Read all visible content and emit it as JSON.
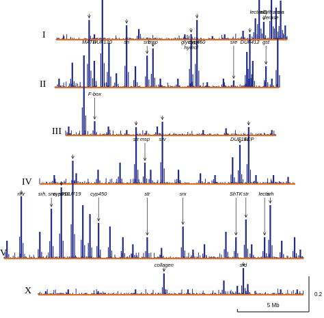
{
  "chart_data": {
    "type": "bar",
    "scale_bar": {
      "length_label": "5 Mb",
      "height_label": "0.2",
      "length_mb": 5,
      "height_value": 0.2
    },
    "colors": {
      "signal": "#1f2a8c",
      "baseline": "#e07020"
    },
    "chromosomes": [
      {
        "name": "I",
        "length_mb": 15.07,
        "peaks": [
          [
            0.5,
            0.02
          ],
          [
            2.5,
            0.03
          ],
          [
            5.4,
            0.06
          ],
          [
            8.4,
            0.03
          ],
          [
            10.2,
            0.02
          ],
          [
            11.0,
            0.03
          ],
          [
            12.2,
            0.05
          ],
          [
            13.0,
            0.12
          ],
          [
            13.25,
            0.25
          ],
          [
            13.55,
            0.1
          ],
          [
            14.05,
            0.3
          ],
          [
            14.35,
            0.18
          ],
          [
            14.65,
            0.22
          ],
          [
            14.95,
            0.08
          ]
        ],
        "annotations": [
          {
            "text": "lectin C",
            "x_mb": 13.2,
            "lines": [
              "lectin C"
            ]
          },
          {
            "text": "nhr",
            "x_mb": 13.55,
            "lines": [
              "nhr"
            ]
          },
          {
            "text": "acyltransferase",
            "x_mb": 14.05,
            "lines": [
              "acyltrans-",
              "ferase"
            ]
          },
          {
            "text": "sra",
            "x_mb": 14.65,
            "lines": [
              "sra"
            ]
          }
        ]
      },
      {
        "name": "II",
        "length_mb": 15.28,
        "peaks": [
          [
            0.3,
            0.05
          ],
          [
            1.2,
            0.14
          ],
          [
            2.35,
            0.38
          ],
          [
            2.7,
            0.15
          ],
          [
            3.25,
            0.55
          ],
          [
            3.7,
            0.25
          ],
          [
            4.2,
            0.08
          ],
          [
            4.9,
            0.35
          ],
          [
            5.5,
            0.12
          ],
          [
            6.3,
            0.18
          ],
          [
            6.7,
            0.22
          ],
          [
            7.2,
            0.05
          ],
          [
            8.4,
            0.05
          ],
          [
            9.3,
            0.3
          ],
          [
            9.7,
            0.38
          ],
          [
            10.4,
            0.03
          ],
          [
            11.5,
            0.05
          ],
          [
            12.2,
            0.04
          ],
          [
            13.1,
            0.2
          ],
          [
            13.3,
            0.3
          ],
          [
            13.5,
            0.15
          ],
          [
            14.4,
            0.12
          ],
          [
            14.8,
            0.05
          ],
          [
            15.2,
            0.28
          ]
        ],
        "annotations": [
          {
            "text": "MATH",
            "x_mb": 2.35,
            "lines": [
              "MATH"
            ]
          },
          {
            "text": "DUF130",
            "x_mb": 3.25,
            "lines": [
              "DUF130"
            ]
          },
          {
            "text": "sri",
            "x_mb": 4.9,
            "lines": [
              "sri"
            ]
          },
          {
            "text": "srb",
            "x_mb": 6.3,
            "lines": [
              "srb"
            ]
          },
          {
            "text": "msp",
            "x_mb": 6.7,
            "lines": [
              "msp"
            ]
          },
          {
            "text": "glycosyl-hydrol",
            "x_mb": 9.3,
            "lines": [
              "glycosyl-",
              "hydrol"
            ]
          },
          {
            "text": "cyp450",
            "x_mb": 9.7,
            "lines": [
              "cyp450"
            ]
          },
          {
            "text": "sre",
            "x_mb": 12.2,
            "lines": [
              "sre"
            ]
          },
          {
            "text": "DUF412",
            "x_mb": 13.3,
            "lines": [
              "DUF412"
            ]
          },
          {
            "text": "gst",
            "x_mb": 14.4,
            "lines": [
              "gst"
            ]
          }
        ]
      },
      {
        "name": "III",
        "length_mb": 13.78,
        "peaks": [
          [
            0.2,
            0.05
          ],
          [
            1.2,
            0.45
          ],
          [
            1.9,
            0.08
          ],
          [
            2.8,
            0.05
          ],
          [
            4.0,
            0.03
          ],
          [
            6.0,
            0.05
          ],
          [
            9.0,
            0.03
          ],
          [
            10.5,
            0.04
          ],
          [
            13.5,
            0.03
          ]
        ],
        "annotations": [
          {
            "text": "F-box",
            "x_mb": 1.9,
            "lines": [
              "F-box"
            ]
          }
        ]
      },
      {
        "name": "IV",
        "length_mb": 17.49,
        "peaks": [
          [
            1.0,
            0.05
          ],
          [
            2.5,
            0.06
          ],
          [
            4.0,
            0.08
          ],
          [
            5.5,
            0.12
          ],
          [
            6.6,
            0.32
          ],
          [
            7.2,
            0.12
          ],
          [
            7.6,
            0.08
          ],
          [
            8.4,
            0.35
          ],
          [
            9.5,
            0.08
          ],
          [
            11.0,
            0.06
          ],
          [
            12.0,
            0.05
          ],
          [
            13.2,
            0.15
          ],
          [
            13.7,
            0.22
          ],
          [
            14.3,
            0.32
          ],
          [
            14.8,
            0.05
          ],
          [
            16.0,
            0.05
          ],
          [
            17.0,
            0.04
          ]
        ],
        "annotations": [
          {
            "text": "str",
            "x_mb": 6.6,
            "lines": [
              "str"
            ]
          },
          {
            "text": "msp",
            "x_mb": 7.2,
            "lines": [
              "msp"
            ]
          },
          {
            "text": "srv",
            "x_mb": 8.4,
            "lines": [
              "srv"
            ]
          },
          {
            "text": "DUF141",
            "x_mb": 13.7,
            "lines": [
              "DUF141"
            ]
          },
          {
            "text": "SCP",
            "x_mb": 14.3,
            "lines": [
              "SCP"
            ]
          }
        ]
      },
      {
        "name": "V",
        "length_mb": 20.92,
        "peaks": [
          [
            0.2,
            0.1
          ],
          [
            1.2,
            0.35
          ],
          [
            2.5,
            0.15
          ],
          [
            3.3,
            0.28
          ],
          [
            4.0,
            0.4
          ],
          [
            4.8,
            0.55
          ],
          [
            5.5,
            0.3
          ],
          [
            6.0,
            0.25
          ],
          [
            6.6,
            0.2
          ],
          [
            7.4,
            0.18
          ],
          [
            8.3,
            0.12
          ],
          [
            9.0,
            0.08
          ],
          [
            10.0,
            0.12
          ],
          [
            11.0,
            0.06
          ],
          [
            12.5,
            0.18
          ],
          [
            13.2,
            0.05
          ],
          [
            14.0,
            0.08
          ],
          [
            15.5,
            0.15
          ],
          [
            16.2,
            0.12
          ],
          [
            16.9,
            0.22
          ],
          [
            17.3,
            0.08
          ],
          [
            18.2,
            0.12
          ],
          [
            18.6,
            0.3
          ],
          [
            19.4,
            0.1
          ],
          [
            20.3,
            0.12
          ],
          [
            20.7,
            0.05
          ]
        ],
        "annotations": [
          {
            "text": "nhr",
            "x_mb": 1.2,
            "lines": [
              "nhr"
            ]
          },
          {
            "text": "srh, srw, str",
            "x_mb": 3.3,
            "lines": [
              "srh, srw, str"
            ]
          },
          {
            "text": "cyp450",
            "x_mb": 4.0,
            "lines": [
              "cyp450"
            ]
          },
          {
            "text": "DUF19",
            "x_mb": 4.8,
            "lines": [
              "DUF19"
            ]
          },
          {
            "text": "cyp450",
            "x_mb": 6.6,
            "lines": [
              "cyp450"
            ]
          },
          {
            "text": "str",
            "x_mb": 10.0,
            "lines": [
              "str"
            ]
          },
          {
            "text": "srx",
            "x_mb": 12.5,
            "lines": [
              "srx"
            ]
          },
          {
            "text": "ShTK",
            "x_mb": 16.2,
            "lines": [
              "ShTK"
            ]
          },
          {
            "text": "str",
            "x_mb": 16.9,
            "lines": [
              "str"
            ]
          },
          {
            "text": "lectin",
            "x_mb": 18.2,
            "lines": [
              "lectin"
            ]
          },
          {
            "text": "srh",
            "x_mb": 18.6,
            "lines": [
              "srh"
            ]
          }
        ]
      },
      {
        "name": "X",
        "length_mb": 17.72,
        "peaks": [
          [
            0.5,
            0.02
          ],
          [
            2.0,
            0.03
          ],
          [
            4.0,
            0.02
          ],
          [
            6.5,
            0.03
          ],
          [
            8.4,
            0.12
          ],
          [
            10.0,
            0.03
          ],
          [
            12.4,
            0.08
          ],
          [
            13.3,
            0.05
          ],
          [
            13.7,
            0.15
          ],
          [
            14.0,
            0.06
          ],
          [
            16.2,
            0.03
          ],
          [
            17.3,
            0.03
          ]
        ],
        "annotations": [
          {
            "text": "collagen",
            "x_mb": 8.4,
            "lines": [
              "collagen"
            ]
          },
          {
            "text": "srd",
            "x_mb": 13.7,
            "lines": [
              "srd"
            ]
          }
        ]
      }
    ]
  }
}
